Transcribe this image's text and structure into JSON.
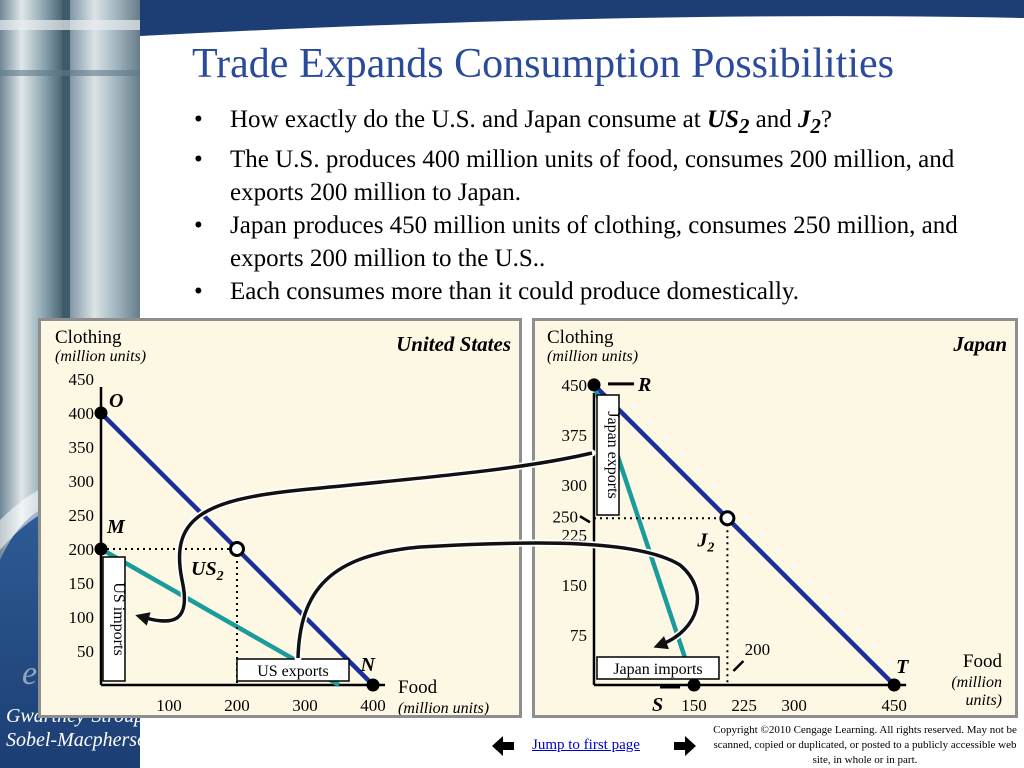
{
  "slide": {
    "title": "Trade Expands Consumption Possibilities",
    "bullets": [
      {
        "pre": "How exactly do the U.S. and Japan consume at ",
        "us2": "US",
        "us2sub": "2",
        "mid": " and ",
        "j2": "J",
        "j2sub": "2",
        "post": "?"
      },
      {
        "text": "The U.S. produces 400 million units of food, consumes 200 million, and exports 200 million to Japan."
      },
      {
        "text": "Japan produces 450 million units of clothing, consumes 250 million, and exports 200 million to the U.S.."
      },
      {
        "text": "Each consumes more than it could produce domestically."
      }
    ]
  },
  "sidebar": {
    "authors_line1": "Gwartney-Stroup",
    "authors_line2": "Sobel-Macpherson"
  },
  "footer": {
    "nav_label": "Jump to first page",
    "copyright": "Copyright ©2010 Cengage Learning. All rights reserved. May not be scanned, copied or duplicated, or posted to a publicly accessible web site, in whole or in part."
  },
  "colors": {
    "title": "#2a4a9a",
    "ppf_line": "#1a2e9c",
    "consumption_line": "#1a9c9c",
    "panel_bg": "#fdf8e4"
  },
  "chart_data": [
    {
      "type": "line",
      "title": "United States",
      "ylabel": "Clothing",
      "ylabel_units": "(million units)",
      "xlabel": "Food",
      "xlabel_units": "(million units)",
      "xlim": [
        0,
        400
      ],
      "ylim": [
        0,
        450
      ],
      "x_ticks": [
        100,
        200,
        300,
        400
      ],
      "y_ticks": [
        50,
        100,
        150,
        200,
        250,
        300,
        350,
        400,
        450
      ],
      "series": [
        {
          "name": "production-possibilities",
          "points": [
            [
              0,
              400
            ],
            [
              400,
              0
            ]
          ]
        },
        {
          "name": "no-trade-consumption",
          "points": [
            [
              0,
              200
            ],
            [
              350,
              0
            ]
          ]
        }
      ],
      "points": [
        {
          "label": "O",
          "x": 0,
          "y": 400,
          "filled": true
        },
        {
          "label": "M",
          "x": 0,
          "y": 200,
          "filled": true
        },
        {
          "label": "N",
          "x": 400,
          "y": 0,
          "filled": true
        },
        {
          "label": "US",
          "sub": "2",
          "x": 200,
          "y": 200,
          "filled": false
        }
      ],
      "annotations": {
        "exports_label": "US exports",
        "imports_label": "US imports"
      }
    },
    {
      "type": "line",
      "title": "Japan",
      "ylabel": "Clothing",
      "ylabel_units": "(million units)",
      "xlabel": "Food",
      "xlabel_units_1": "(million",
      "xlabel_units_2": "units)",
      "xlim": [
        0,
        450
      ],
      "ylim": [
        0,
        450
      ],
      "x_ticks": [
        150,
        225,
        300,
        450
      ],
      "y_ticks": [
        75,
        150,
        225,
        300,
        375,
        450
      ],
      "extra_tick_y": 250,
      "extra_tick_x": 200,
      "series": [
        {
          "name": "production-possibilities",
          "points": [
            [
              0,
              450
            ],
            [
              450,
              0
            ]
          ]
        },
        {
          "name": "no-trade-consumption",
          "points": [
            [
              0,
              450
            ],
            [
              150,
              0
            ]
          ]
        }
      ],
      "points": [
        {
          "label": "R",
          "x": 0,
          "y": 450,
          "filled": true
        },
        {
          "label": "S",
          "x": 150,
          "y": 0,
          "filled": true
        },
        {
          "label": "T",
          "x": 450,
          "y": 0,
          "filled": true
        },
        {
          "label": "J",
          "sub": "2",
          "x": 200,
          "y": 250,
          "filled": false
        }
      ],
      "annotations": {
        "exports_label": "Japan exports",
        "imports_label": "Japan imports"
      }
    }
  ]
}
